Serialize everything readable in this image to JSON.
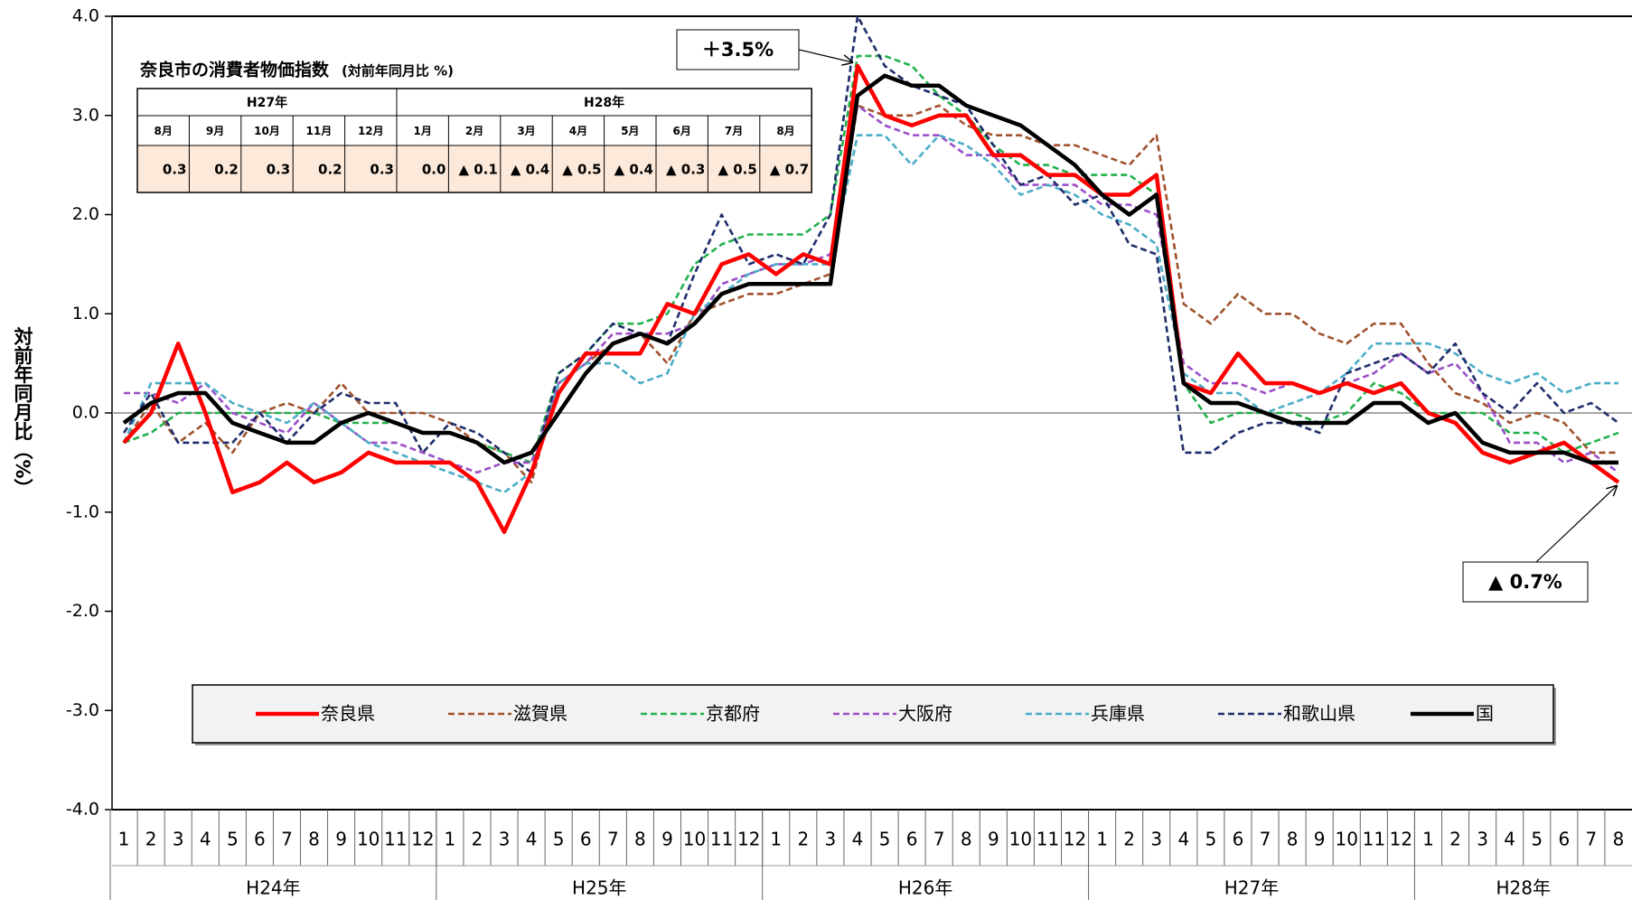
{
  "chart_data": {
    "type": "line",
    "y_label": "対前年同月比（%）",
    "categories": [
      "1",
      "2",
      "3",
      "4",
      "5",
      "6",
      "7",
      "8",
      "9",
      "10",
      "11",
      "12",
      "1",
      "2",
      "3",
      "4",
      "5",
      "6",
      "7",
      "8",
      "9",
      "10",
      "11",
      "12",
      "1",
      "2",
      "3",
      "4",
      "5",
      "6",
      "7",
      "8",
      "9",
      "10",
      "11",
      "12",
      "1",
      "2",
      "3",
      "4",
      "5",
      "6",
      "7",
      "8",
      "9",
      "10",
      "11",
      "12",
      "1",
      "2",
      "3",
      "4",
      "5",
      "6",
      "7",
      "8"
    ],
    "groups": [
      {
        "label": "H24年",
        "span": 12
      },
      {
        "label": "H25年",
        "span": 12
      },
      {
        "label": "H26年",
        "span": 12
      },
      {
        "label": "H27年",
        "span": 12
      },
      {
        "label": "H28年",
        "span": 8
      }
    ],
    "ylim": [
      -4,
      4
    ],
    "yticks": [
      {
        "value": 4,
        "label": "4.0"
      },
      {
        "value": 3,
        "label": "3.0"
      },
      {
        "value": 2,
        "label": "2.0"
      },
      {
        "value": 1,
        "label": "1.0"
      },
      {
        "value": 0,
        "label": "0.0"
      },
      {
        "value": -1,
        "label": "-1.0"
      },
      {
        "value": -2,
        "label": "-2.0"
      },
      {
        "value": -3,
        "label": "-3.0"
      },
      {
        "value": -4,
        "label": "-4.0"
      }
    ],
    "negative_tick_color": "#ff0000",
    "series": [
      {
        "name": "奈良県",
        "color": "#ff0000",
        "dashed": false,
        "values": [
          -0.3,
          0.0,
          0.7,
          0.0,
          -0.8,
          -0.7,
          -0.5,
          -0.7,
          -0.6,
          -0.4,
          -0.5,
          -0.5,
          -0.5,
          -0.7,
          -1.2,
          -0.6,
          0.2,
          0.6,
          0.6,
          0.6,
          1.1,
          1.0,
          1.5,
          1.6,
          1.4,
          1.6,
          1.5,
          3.5,
          3.0,
          2.9,
          3.0,
          3.0,
          2.6,
          2.6,
          2.4,
          2.4,
          2.2,
          2.2,
          2.4,
          0.3,
          0.2,
          0.6,
          0.3,
          0.3,
          0.2,
          0.3,
          0.2,
          0.3,
          0.0,
          -0.1,
          -0.4,
          -0.5,
          -0.4,
          -0.3,
          -0.5,
          -0.7
        ]
      },
      {
        "name": "滋賀県",
        "color": "#a0522d",
        "dashed": true,
        "values": [
          -0.3,
          0.1,
          -0.3,
          -0.1,
          -0.4,
          0.0,
          0.1,
          0.0,
          0.3,
          0.0,
          0.0,
          0.0,
          -0.1,
          -0.3,
          -0.4,
          -0.7,
          0.3,
          0.5,
          0.7,
          0.8,
          0.5,
          1.0,
          1.1,
          1.2,
          1.2,
          1.3,
          1.4,
          3.1,
          3.0,
          3.0,
          3.1,
          2.9,
          2.8,
          2.8,
          2.7,
          2.7,
          2.6,
          2.5,
          2.8,
          1.1,
          0.9,
          1.2,
          1.0,
          1.0,
          0.8,
          0.7,
          0.9,
          0.9,
          0.5,
          0.2,
          0.1,
          -0.1,
          0.0,
          -0.1,
          -0.4,
          -0.4
        ]
      },
      {
        "name": "京都府",
        "color": "#22b14c",
        "dashed": true,
        "values": [
          -0.3,
          -0.2,
          0.0,
          0.0,
          0.0,
          0.0,
          0.0,
          0.0,
          -0.1,
          -0.1,
          -0.1,
          -0.2,
          -0.2,
          -0.3,
          -0.4,
          -0.5,
          0.4,
          0.6,
          0.9,
          0.9,
          1.0,
          1.5,
          1.7,
          1.8,
          1.8,
          1.8,
          2.0,
          3.6,
          3.6,
          3.5,
          3.2,
          3.0,
          2.7,
          2.5,
          2.5,
          2.4,
          2.4,
          2.4,
          2.2,
          0.3,
          -0.1,
          0.0,
          0.0,
          0.0,
          -0.1,
          0.0,
          0.3,
          0.2,
          0.0,
          0.0,
          0.0,
          -0.2,
          -0.2,
          -0.4,
          -0.3,
          -0.2
        ]
      },
      {
        "name": "大阪府",
        "color": "#9b4fc8",
        "dashed": true,
        "values": [
          0.2,
          0.2,
          0.1,
          0.3,
          0.0,
          -0.1,
          -0.2,
          0.1,
          -0.1,
          -0.3,
          -0.3,
          -0.4,
          -0.5,
          -0.6,
          -0.5,
          -0.5,
          0.3,
          0.5,
          0.8,
          0.8,
          0.8,
          0.9,
          1.3,
          1.4,
          1.5,
          1.5,
          1.6,
          3.1,
          2.9,
          2.8,
          2.8,
          2.6,
          2.6,
          2.3,
          2.3,
          2.3,
          2.1,
          2.1,
          2.0,
          0.5,
          0.3,
          0.3,
          0.2,
          0.3,
          0.2,
          0.3,
          0.4,
          0.6,
          0.4,
          0.5,
          0.2,
          -0.3,
          -0.3,
          -0.5,
          -0.4,
          -0.6
        ]
      },
      {
        "name": "兵庫県",
        "color": "#4bacc6",
        "dashed": true,
        "values": [
          -0.3,
          0.3,
          0.3,
          0.3,
          0.1,
          0.0,
          -0.1,
          0.1,
          -0.1,
          -0.3,
          -0.4,
          -0.5,
          -0.6,
          -0.7,
          -0.8,
          -0.6,
          0.3,
          0.5,
          0.5,
          0.3,
          0.4,
          1.0,
          1.2,
          1.4,
          1.5,
          1.5,
          1.5,
          2.8,
          2.8,
          2.5,
          2.8,
          2.7,
          2.5,
          2.2,
          2.3,
          2.2,
          2.0,
          1.9,
          1.7,
          0.4,
          0.2,
          0.2,
          0.0,
          0.1,
          0.2,
          0.4,
          0.7,
          0.7,
          0.7,
          0.6,
          0.4,
          0.3,
          0.4,
          0.2,
          0.3,
          0.3
        ]
      },
      {
        "name": "和歌山県",
        "color": "#1f2d6b",
        "dashed": true,
        "values": [
          -0.2,
          0.2,
          -0.3,
          -0.3,
          -0.3,
          0.0,
          -0.3,
          0.0,
          0.2,
          0.1,
          0.1,
          -0.4,
          -0.1,
          -0.2,
          -0.4,
          -0.6,
          0.4,
          0.6,
          0.9,
          0.8,
          0.7,
          1.4,
          2.0,
          1.5,
          1.6,
          1.5,
          2.0,
          4.0,
          3.5,
          3.3,
          3.2,
          3.1,
          2.7,
          2.3,
          2.4,
          2.1,
          2.2,
          1.7,
          1.6,
          -0.4,
          -0.4,
          -0.2,
          -0.1,
          -0.1,
          -0.2,
          0.4,
          0.5,
          0.6,
          0.4,
          0.7,
          0.2,
          0.0,
          0.3,
          0.0,
          0.1,
          -0.1
        ]
      },
      {
        "name": "国",
        "color": "#000000",
        "dashed": false,
        "values": [
          -0.1,
          0.1,
          0.2,
          0.2,
          -0.1,
          -0.2,
          -0.3,
          -0.3,
          -0.1,
          0.0,
          -0.1,
          -0.2,
          -0.2,
          -0.3,
          -0.5,
          -0.4,
          0.0,
          0.4,
          0.7,
          0.8,
          0.7,
          0.9,
          1.2,
          1.3,
          1.3,
          1.3,
          1.3,
          3.2,
          3.4,
          3.3,
          3.3,
          3.1,
          3.0,
          2.9,
          2.7,
          2.5,
          2.2,
          2.0,
          2.2,
          0.3,
          0.1,
          0.1,
          0.0,
          -0.1,
          -0.1,
          -0.1,
          0.1,
          0.1,
          -0.1,
          0.0,
          -0.3,
          -0.4,
          -0.4,
          -0.4,
          -0.5,
          -0.5
        ]
      }
    ],
    "annotations": [
      {
        "text": "＋3.5%"
      },
      {
        "text": "▲ 0.7%"
      }
    ],
    "inset_table": {
      "title": "奈良市の消費者物価指数",
      "subtitle": "(対前年同月比 %)",
      "years": [
        {
          "label": "H27年",
          "span": 5
        },
        {
          "label": "H28年",
          "span": 8
        }
      ],
      "months": [
        "8月",
        "9月",
        "10月",
        "11月",
        "12月",
        "1月",
        "2月",
        "3月",
        "4月",
        "5月",
        "6月",
        "7月",
        "8月"
      ],
      "values": [
        0.3,
        0.2,
        0.3,
        0.2,
        0.3,
        0.0,
        -0.1,
        -0.4,
        -0.5,
        -0.4,
        -0.3,
        -0.5,
        -0.7
      ],
      "value_labels": [
        "0.3",
        "0.2",
        "0.3",
        "0.2",
        "0.3",
        "0.0",
        "▲ 0.1",
        "▲ 0.4",
        "▲ 0.5",
        "▲ 0.4",
        "▲ 0.3",
        "▲ 0.5",
        "▲ 0.7"
      ]
    }
  }
}
